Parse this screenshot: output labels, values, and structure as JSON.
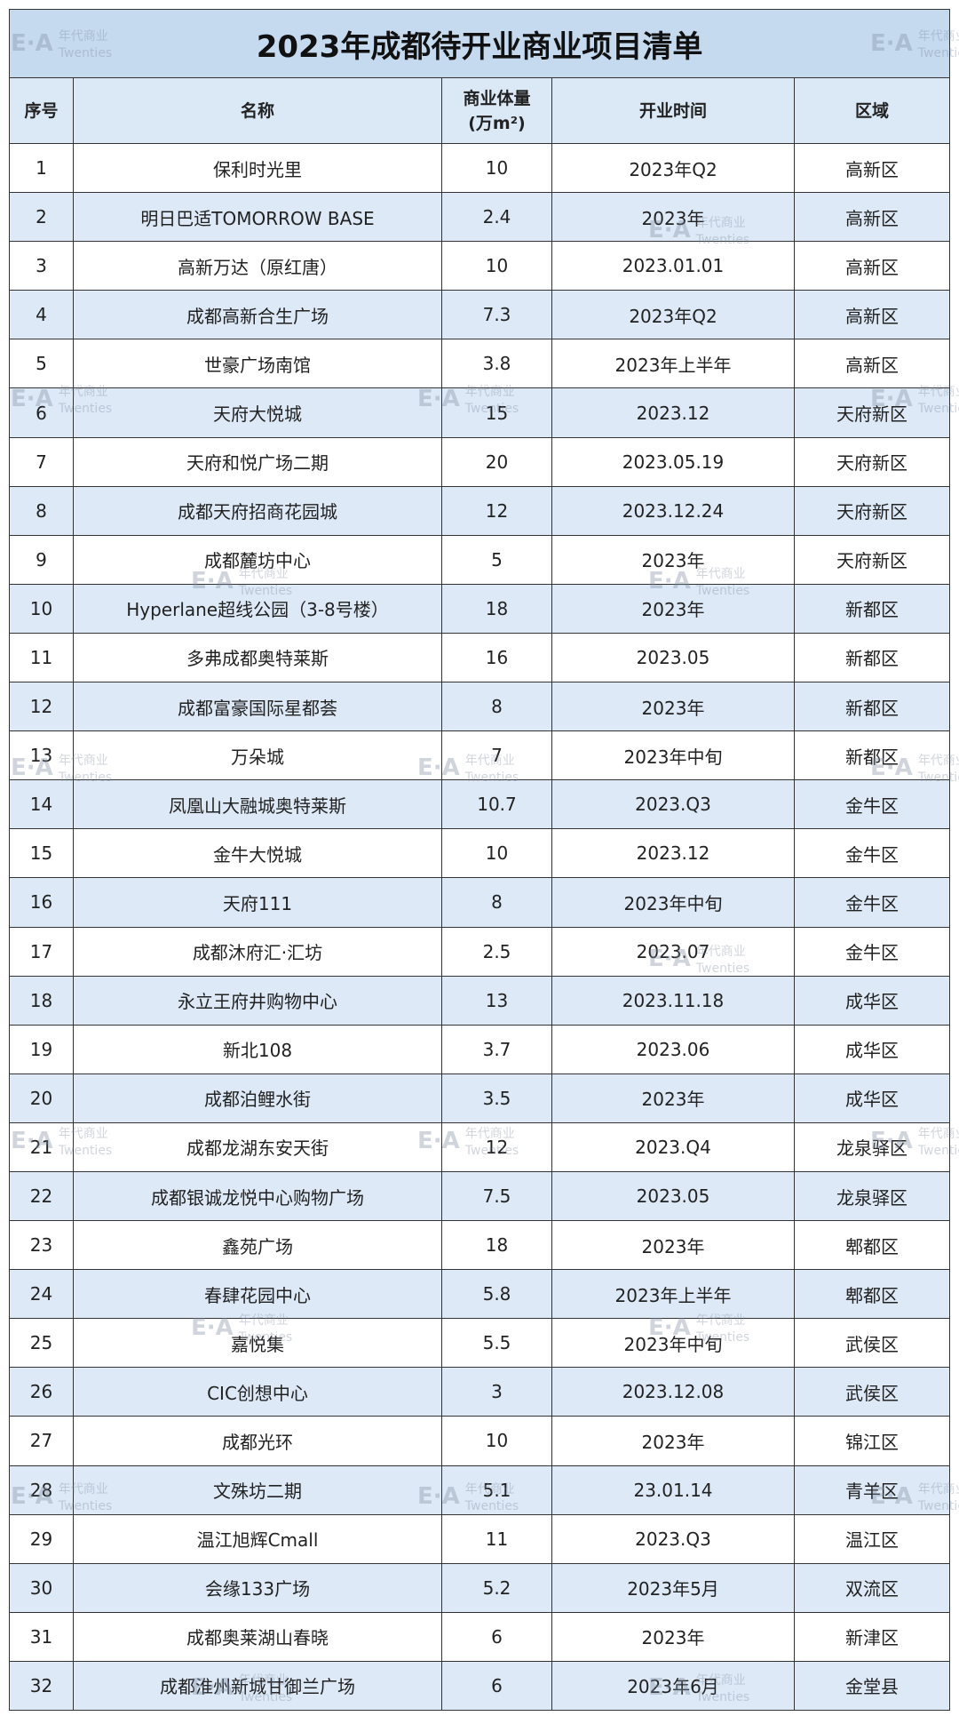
{
  "title": "2023年成都待开业商业项目清单",
  "watermark": {
    "mark": "E·A",
    "text": "年代商业",
    "sub": "Twenties"
  },
  "table": {
    "headers": [
      "序号",
      "名称",
      "商业体量\n(万m²)",
      "开业时间",
      "区域"
    ],
    "rows": [
      [
        1,
        "保利时光里",
        10,
        "2023年Q2",
        "高新区"
      ],
      [
        2,
        "明日巴适TOMORROW BASE",
        2.4,
        "2023年",
        "高新区"
      ],
      [
        3,
        "高新万达（原红唐）",
        10,
        "2023.01.01",
        "高新区"
      ],
      [
        4,
        "成都高新合生广场",
        7.3,
        "2023年Q2",
        "高新区"
      ],
      [
        5,
        "世豪广场南馆",
        3.8,
        "2023年上半年",
        "高新区"
      ],
      [
        6,
        "天府大悦城",
        15,
        "2023.12",
        "天府新区"
      ],
      [
        7,
        "天府和悦广场二期",
        20,
        "2023.05.19",
        "天府新区"
      ],
      [
        8,
        "成都天府招商花园城",
        12,
        "2023.12.24",
        "天府新区"
      ],
      [
        9,
        "成都麓坊中心",
        5,
        "2023年",
        "天府新区"
      ],
      [
        10,
        "Hyperlane超线公园（3-8号楼）",
        18,
        "2023年",
        "新都区"
      ],
      [
        11,
        "多弗成都奥特莱斯",
        16,
        "2023.05",
        "新都区"
      ],
      [
        12,
        "成都富豪国际星都荟",
        8,
        "2023年",
        "新都区"
      ],
      [
        13,
        "万朵城",
        7,
        "2023年中旬",
        "新都区"
      ],
      [
        14,
        "凤凰山大融城奥特莱斯",
        10.7,
        "2023.Q3",
        "金牛区"
      ],
      [
        15,
        "金牛大悦城",
        10,
        "2023.12",
        "金牛区"
      ],
      [
        16,
        "天府111",
        8,
        "2023年中旬",
        "金牛区"
      ],
      [
        17,
        "成都沐府汇·汇坊",
        2.5,
        "2023.07",
        "金牛区"
      ],
      [
        18,
        "永立王府井购物中心",
        13,
        "2023.11.18",
        "成华区"
      ],
      [
        19,
        "新北108",
        3.7,
        "2023.06",
        "成华区"
      ],
      [
        20,
        "成都泊鲤水街",
        3.5,
        "2023年",
        "成华区"
      ],
      [
        21,
        "成都龙湖东安天街",
        12,
        "2023.Q4",
        "龙泉驿区"
      ],
      [
        22,
        "成都银诚龙悦中心购物广场",
        7.5,
        "2023.05",
        "龙泉驿区"
      ],
      [
        23,
        "鑫苑广场",
        18,
        "2023年",
        "郫都区"
      ],
      [
        24,
        "春肆花园中心",
        5.8,
        "2023年上半年",
        "郫都区"
      ],
      [
        25,
        "嘉悦集",
        5.5,
        "2023年中旬",
        "武侯区"
      ],
      [
        26,
        "CIC创想中心",
        3,
        "2023.12.08",
        "武侯区"
      ],
      [
        27,
        "成都光环",
        10,
        "2023年",
        "锦江区"
      ],
      [
        28,
        "文殊坊二期",
        5.1,
        "23.01.14",
        "青羊区"
      ],
      [
        29,
        "温江旭辉Cmall",
        11,
        "2023.Q3",
        "温江区"
      ],
      [
        30,
        "会缘133广场",
        5.2,
        "2023年5月",
        "双流区"
      ],
      [
        31,
        "成都奥莱湖山春晓",
        6,
        "2023年",
        "新津区"
      ],
      [
        32,
        "成都淮州新城甘御兰广场",
        6,
        "2023年6月",
        "金堂县"
      ]
    ]
  }
}
